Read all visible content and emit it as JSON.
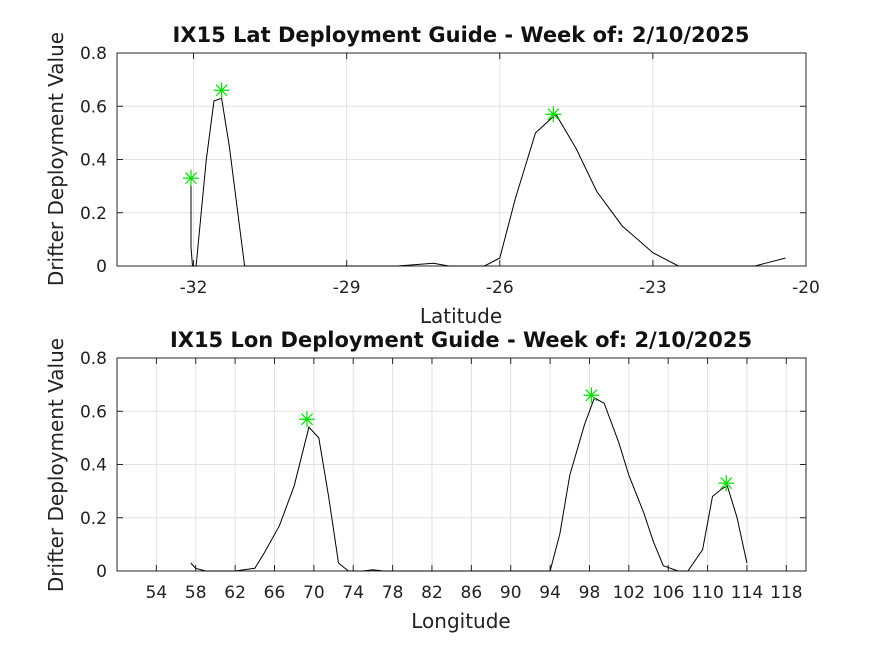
{
  "chart_data": [
    {
      "type": "line",
      "title": "IX15 Lat Deployment Guide - Week of: 2/10/2025",
      "xlabel": "Latitude",
      "ylabel": "Drifter Deployment Value",
      "xlim": [
        -33.5,
        -20
      ],
      "ylim": [
        0,
        0.8
      ],
      "xticks": [
        -32,
        -29,
        -26,
        -23,
        -20
      ],
      "yticks": [
        0,
        0.2,
        0.4,
        0.6,
        0.8
      ],
      "xtick_labels": [
        "-32",
        "-29",
        "-26",
        "-23",
        "-20"
      ],
      "ytick_labels": [
        "0",
        "0.2",
        "0.4",
        "0.6",
        "0.8"
      ],
      "grid": true,
      "series": [
        {
          "x": [
            -32.05,
            -32.05,
            -32.02,
            -31.95,
            -31.75,
            -31.6,
            -31.45,
            -31.3,
            -31.1,
            -31.0,
            -30.5,
            -28,
            -27.3,
            -27.0,
            -26.3,
            -26.0,
            -25.7,
            -25.3,
            -24.9,
            -24.5,
            -24.1,
            -23.6,
            -23.0,
            -22.5,
            -21.0,
            -20.8,
            -20.4
          ],
          "y": [
            0.33,
            0.07,
            0.0,
            0.0,
            0.4,
            0.62,
            0.63,
            0.45,
            0.15,
            0.0,
            0.0,
            0.0,
            0.01,
            0.0,
            0.0,
            0.03,
            0.25,
            0.5,
            0.57,
            0.44,
            0.28,
            0.15,
            0.05,
            0.0,
            0.0,
            0.01,
            0.03
          ]
        }
      ],
      "markers": {
        "color": "#00e000",
        "x": [
          -32.05,
          -31.45,
          -24.95
        ],
        "y": [
          0.33,
          0.66,
          0.57
        ]
      }
    },
    {
      "type": "line",
      "title": "IX15 Lon Deployment Guide - Week of: 2/10/2025",
      "xlabel": "Longitude",
      "ylabel": "Drifter Deployment Value",
      "xlim": [
        50,
        120
      ],
      "ylim": [
        0,
        0.8
      ],
      "xticks": [
        54,
        58,
        62,
        66,
        70,
        74,
        78,
        82,
        86,
        90,
        94,
        98,
        102,
        106,
        110,
        114,
        118
      ],
      "yticks": [
        0,
        0.2,
        0.4,
        0.6,
        0.8
      ],
      "xtick_labels": [
        "54",
        "58",
        "62",
        "66",
        "70",
        "74",
        "78",
        "82",
        "86",
        "90",
        "94",
        "98",
        "102",
        "106",
        "110",
        "114",
        "118"
      ],
      "ytick_labels": [
        "0",
        "0.2",
        "0.4",
        "0.6",
        "0.8"
      ],
      "grid": true,
      "series": [
        {
          "x": [
            57.5,
            58,
            59,
            62,
            64,
            65,
            66.5,
            68,
            69.5,
            70.5,
            71.5,
            72.5,
            73.5,
            75,
            76,
            77,
            78,
            94,
            95,
            96,
            97.5,
            98.5,
            99.5,
            101,
            102,
            103.5,
            104.5,
            105.5,
            107,
            108,
            109.5,
            110.5,
            111.5,
            112,
            113,
            114
          ],
          "y": [
            0.03,
            0.01,
            0.0,
            0.0,
            0.01,
            0.07,
            0.17,
            0.32,
            0.54,
            0.5,
            0.28,
            0.03,
            0.0,
            0.0,
            0.005,
            0.0,
            0.0,
            0.0,
            0.14,
            0.36,
            0.55,
            0.65,
            0.63,
            0.48,
            0.36,
            0.22,
            0.11,
            0.02,
            0.0,
            0.0,
            0.08,
            0.28,
            0.31,
            0.32,
            0.2,
            0.03
          ]
        }
      ],
      "markers": {
        "color": "#00e000",
        "x": [
          69.3,
          98.2,
          111.9
        ],
        "y": [
          0.57,
          0.66,
          0.33
        ]
      }
    }
  ]
}
